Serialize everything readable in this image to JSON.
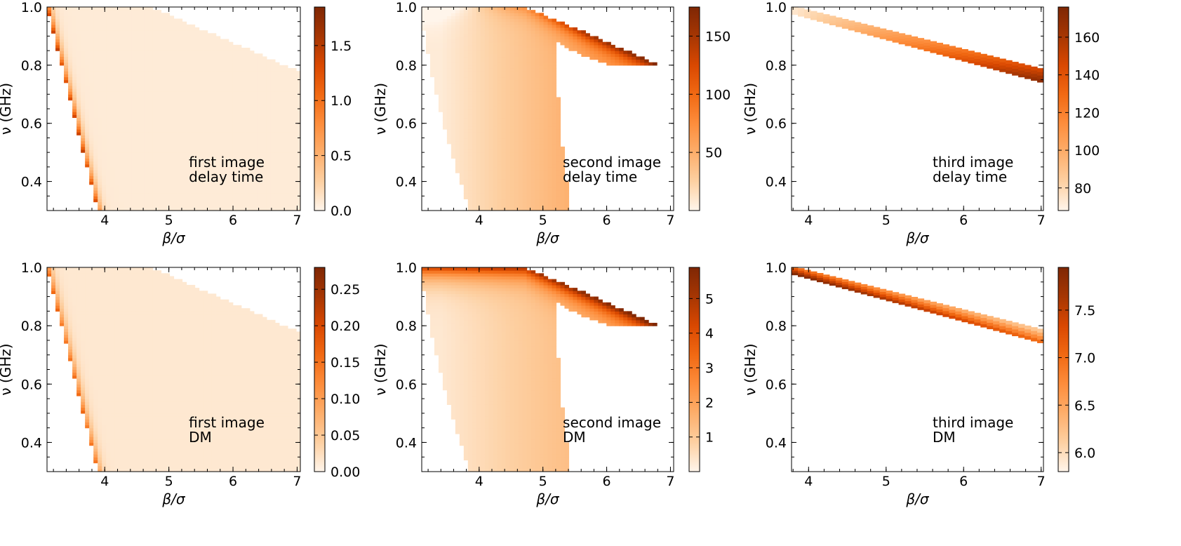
{
  "figure": {
    "colormap": [
      "#fff5eb",
      "#fdd0a2",
      "#fdae6b",
      "#fd8d3c",
      "#f16913",
      "#d94801",
      "#a63603",
      "#7f2704"
    ],
    "xlabel": "β/σ",
    "ylabel": "ν (GHz)"
  },
  "chart_data": [
    {
      "id": "first-delay",
      "type": "heatmap",
      "annotation": [
        "first image",
        "delay time"
      ],
      "xlabel": "β/σ",
      "ylabel": "ν (GHz)",
      "xlim": [
        3.1,
        7.05
      ],
      "ylim": [
        0.3,
        1.0
      ],
      "xticks": [
        "4",
        "5",
        "6",
        "7"
      ],
      "yticks": [
        "0.4",
        "0.6",
        "0.8",
        "1.0"
      ],
      "colorbar": {
        "range": [
          0.0,
          1.85
        ],
        "ticks": [
          "0.0",
          "0.5",
          "1.0",
          "1.5"
        ]
      },
      "region": "first",
      "description_values": {
        "edge_max": 1.85
      }
    },
    {
      "id": "second-delay",
      "type": "heatmap",
      "annotation": [
        "second image",
        "delay time"
      ],
      "xlabel": "β/σ",
      "ylabel": "ν (GHz)",
      "xlim": [
        3.1,
        7.05
      ],
      "ylim": [
        0.3,
        1.0
      ],
      "xticks": [
        "4",
        "5",
        "6",
        "7"
      ],
      "yticks": [
        "0.4",
        "0.6",
        "0.8",
        "1.0"
      ],
      "colorbar": {
        "range": [
          0,
          175
        ],
        "ticks": [
          "50",
          "100",
          "150"
        ]
      },
      "region": "second"
    },
    {
      "id": "third-delay",
      "type": "heatmap",
      "annotation": [
        "third image",
        "delay time"
      ],
      "xlabel": "β/σ",
      "ylabel": "ν (GHz)",
      "xlim": [
        3.78,
        7.03
      ],
      "ylim": [
        0.3,
        1.0
      ],
      "xticks": [
        "4",
        "5",
        "6",
        "7"
      ],
      "yticks": [
        "0.4",
        "0.6",
        "0.8",
        "1.0"
      ],
      "colorbar": {
        "range": [
          68,
          176
        ],
        "ticks": [
          "80",
          "100",
          "120",
          "140",
          "160"
        ]
      },
      "region": "third",
      "band_trend": "increasing"
    },
    {
      "id": "first-dm",
      "type": "heatmap",
      "annotation": [
        "first image",
        "DM"
      ],
      "xlabel": "β/σ",
      "ylabel": "ν (GHz)",
      "xlim": [
        3.1,
        7.05
      ],
      "ylim": [
        0.3,
        1.0
      ],
      "xticks": [
        "4",
        "5",
        "6",
        "7"
      ],
      "yticks": [
        "0.4",
        "0.6",
        "0.8",
        "1.0"
      ],
      "colorbar": {
        "range": [
          0.0,
          0.28
        ],
        "ticks": [
          "0.00",
          "0.05",
          "0.10",
          "0.15",
          "0.20",
          "0.25"
        ]
      },
      "region": "first"
    },
    {
      "id": "second-dm",
      "type": "heatmap",
      "annotation": [
        "second image",
        "DM"
      ],
      "xlabel": "β/σ",
      "ylabel": "ν (GHz)",
      "xlim": [
        3.1,
        7.05
      ],
      "ylim": [
        0.3,
        1.0
      ],
      "xticks": [
        "4",
        "5",
        "6",
        "7"
      ],
      "yticks": [
        "0.4",
        "0.6",
        "0.8",
        "1.0"
      ],
      "colorbar": {
        "range": [
          0,
          5.9
        ],
        "ticks": [
          "1",
          "2",
          "3",
          "4",
          "5"
        ]
      },
      "region": "second"
    },
    {
      "id": "third-dm",
      "type": "heatmap",
      "annotation": [
        "third image",
        "DM"
      ],
      "xlabel": "β/σ",
      "ylabel": "ν (GHz)",
      "xlim": [
        3.78,
        7.03
      ],
      "ylim": [
        0.3,
        1.0
      ],
      "xticks": [
        "4",
        "5",
        "6",
        "7"
      ],
      "yticks": [
        "0.4",
        "0.6",
        "0.8",
        "1.0"
      ],
      "colorbar": {
        "range": [
          5.8,
          7.95
        ],
        "ticks": [
          "6.0",
          "6.5",
          "7.0",
          "7.5"
        ]
      },
      "region": "third",
      "band_trend": "decreasing"
    }
  ]
}
